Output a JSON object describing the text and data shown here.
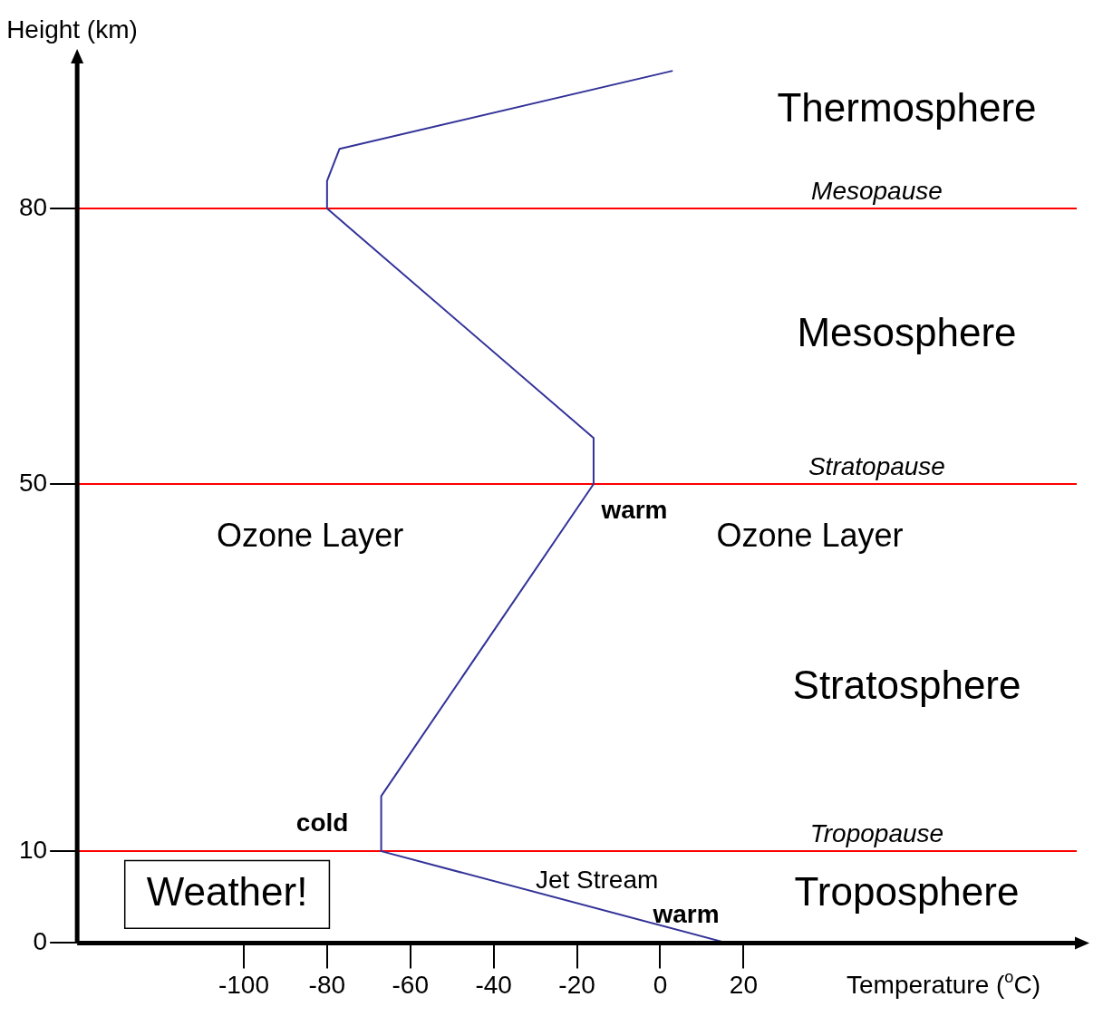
{
  "chart_data": {
    "type": "line",
    "xlabel": "Temperature ($^{o}$C)",
    "ylabel": "Height (km)",
    "series": [
      {
        "color": "#333399",
        "x": [
          16,
          -67,
          -67,
          -16,
          -16,
          -80,
          -80,
          -77,
          3
        ],
        "values": [
          0,
          10,
          16,
          50,
          55,
          80,
          83,
          86.5,
          95
        ]
      }
    ],
    "xlim": [
      -140,
      100
    ],
    "ylim": [
      0,
      96
    ],
    "xticks": [
      -100,
      -80,
      -60,
      -40,
      -20,
      0,
      20
    ],
    "yticks": [
      0,
      10,
      50,
      80
    ],
    "grid": false,
    "legend": false,
    "marker": "none",
    "line_style": "solid",
    "ref_lines": [
      {
        "axis": "y",
        "value": 80,
        "label": "Mesopause",
        "color": "#ff0000"
      },
      {
        "axis": "y",
        "value": 50,
        "label": "Stratopause",
        "color": "#ff0000"
      },
      {
        "axis": "y",
        "value": 10,
        "label": "Tropopause",
        "color": "#ff0000"
      }
    ],
    "annotations": [
      "Thermosphere",
      "Mesosphere",
      "Ozone Layer",
      "Ozone Layer",
      "Stratosphere",
      "Troposphere",
      "Jet Stream",
      "Weather!",
      {
        "text": "warm",
        "x": -16,
        "y": 50
      },
      {
        "text": "warm",
        "x": 16,
        "y": 0
      },
      {
        "text": "cold",
        "x": -67,
        "y": 10
      }
    ]
  }
}
